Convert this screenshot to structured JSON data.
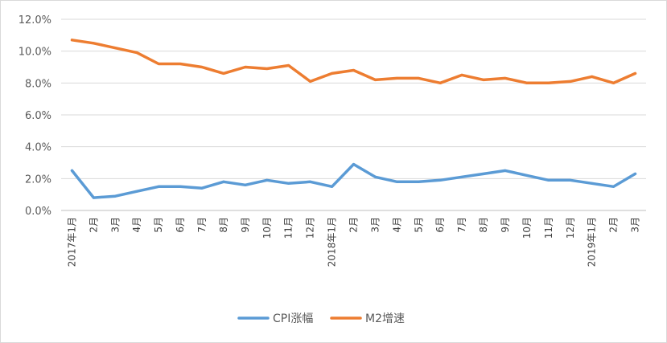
{
  "chart_data": {
    "type": "line",
    "title": "",
    "xlabel": "",
    "ylabel": "",
    "ylim": [
      0,
      12
    ],
    "yticks": [
      "0.0%",
      "2.0%",
      "4.0%",
      "6.0%",
      "8.0%",
      "10.0%",
      "12.0%"
    ],
    "grid": "horizontal",
    "legend_position": "bottom",
    "categories": [
      "2017年1月",
      "2月",
      "3月",
      "4月",
      "5月",
      "6月",
      "7月",
      "8月",
      "9月",
      "10月",
      "11月",
      "12月",
      "2018年1月",
      "2月",
      "3月",
      "4月",
      "5月",
      "6月",
      "7月",
      "8月",
      "9月",
      "10月",
      "11月",
      "12月",
      "2019年1月",
      "2月",
      "3月"
    ],
    "series": [
      {
        "name": "CPI涨幅",
        "color": "#5b9bd5",
        "values": [
          2.5,
          0.8,
          0.9,
          1.2,
          1.5,
          1.5,
          1.4,
          1.8,
          1.6,
          1.9,
          1.7,
          1.8,
          1.5,
          2.9,
          2.1,
          1.8,
          1.8,
          1.9,
          2.1,
          2.3,
          2.5,
          2.2,
          1.9,
          1.9,
          1.7,
          1.5,
          2.3
        ]
      },
      {
        "name": "M2增速",
        "color": "#ed7d31",
        "values": [
          10.7,
          10.5,
          10.2,
          9.9,
          9.2,
          9.2,
          9.0,
          8.6,
          9.0,
          8.9,
          9.1,
          8.1,
          8.6,
          8.8,
          8.2,
          8.3,
          8.3,
          8.0,
          8.5,
          8.2,
          8.3,
          8.0,
          8.0,
          8.1,
          8.4,
          8.0,
          8.6
        ]
      }
    ]
  }
}
